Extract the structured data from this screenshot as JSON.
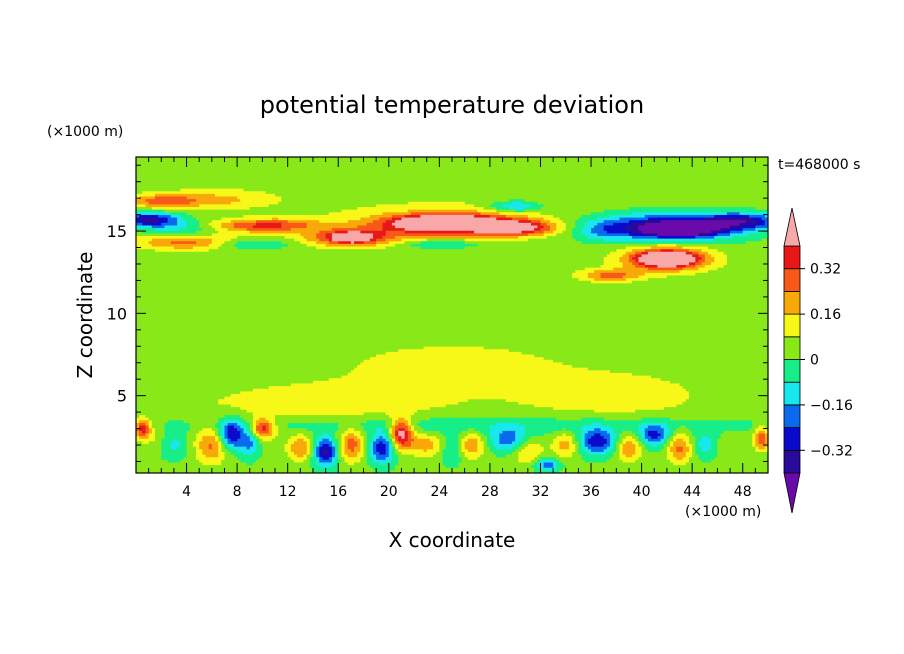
{
  "chart_data": {
    "type": "heatmap",
    "title": "potential temperature deviation",
    "xlabel": "X coordinate",
    "ylabel": "Z coordinate",
    "x_unit": "(×1000 m)",
    "y_unit": "(×1000 m)",
    "time_label": "t=468000 s",
    "xlim": [
      0,
      50
    ],
    "ylim": [
      0.3,
      19.5
    ],
    "x_ticks": [
      4,
      8,
      12,
      16,
      20,
      24,
      28,
      32,
      36,
      40,
      44,
      48
    ],
    "y_ticks": [
      5,
      10,
      15
    ],
    "colorbar": {
      "levels": [
        -0.4,
        -0.32,
        -0.24,
        -0.16,
        -0.08,
        0,
        0.08,
        0.16,
        0.24,
        0.32,
        0.4
      ],
      "tick_labels": [
        "0.32",
        "0.16",
        "0",
        "−0.16",
        "−0.32"
      ],
      "tick_values": [
        0.32,
        0.16,
        0,
        -0.16,
        -0.32
      ],
      "colors": [
        "#6a0aaa",
        "#2a0a9a",
        "#0a0acc",
        "#0a6aee",
        "#18e8ee",
        "#18ee88",
        "#88e818",
        "#f8f818",
        "#f8a808",
        "#f85818",
        "#e81818",
        "#f8a8a8"
      ],
      "extend": "both"
    },
    "background_value": 0.02,
    "features": [
      {
        "x": 25,
        "z": 17.5,
        "sx": 30,
        "sz": 3,
        "value": 0.05
      },
      {
        "x": 2,
        "z": 16.8,
        "sx": 2.5,
        "sz": 0.4,
        "value": 0.22
      },
      {
        "x": 6,
        "z": 16.9,
        "sx": 4,
        "sz": 0.5,
        "value": 0.14
      },
      {
        "x": 1,
        "z": 15.7,
        "sx": 2.5,
        "sz": 0.45,
        "value": -0.38
      },
      {
        "x": 4,
        "z": 15.2,
        "sx": 3,
        "sz": 0.45,
        "value": -0.14
      },
      {
        "x": 4,
        "z": 14.3,
        "sx": 4,
        "sz": 0.45,
        "value": 0.24
      },
      {
        "x": 9,
        "z": 15.3,
        "sx": 4,
        "sz": 0.4,
        "value": 0.24
      },
      {
        "x": 9,
        "z": 14.2,
        "sx": 3,
        "sz": 0.3,
        "value": -0.15
      },
      {
        "x": 12,
        "z": 15.4,
        "sx": 3,
        "sz": 0.4,
        "value": 0.12
      },
      {
        "x": 17,
        "z": 14.6,
        "sx": 3.5,
        "sz": 0.55,
        "value": 0.34
      },
      {
        "x": 17,
        "z": 14.6,
        "sx": 1.2,
        "sz": 0.25,
        "value": 0.44
      },
      {
        "x": 24.5,
        "z": 15.4,
        "sx": 6.5,
        "sz": 0.75,
        "value": 0.34
      },
      {
        "x": 24.5,
        "z": 15.5,
        "sx": 3.5,
        "sz": 0.45,
        "value": 0.46
      },
      {
        "x": 30,
        "z": 15.2,
        "sx": 3,
        "sz": 0.45,
        "value": 0.38
      },
      {
        "x": 24,
        "z": 14.2,
        "sx": 3,
        "sz": 0.25,
        "value": -0.14
      },
      {
        "x": 30,
        "z": 16.5,
        "sx": 2,
        "sz": 0.35,
        "value": -0.22
      },
      {
        "x": 42,
        "z": 15.3,
        "sx": 6,
        "sz": 0.85,
        "value": -0.36
      },
      {
        "x": 43,
        "z": 15.1,
        "sx": 3,
        "sz": 0.45,
        "value": -0.46
      },
      {
        "x": 48,
        "z": 15.6,
        "sx": 3,
        "sz": 0.5,
        "value": -0.32
      },
      {
        "x": 37,
        "z": 15,
        "sx": 2,
        "sz": 0.6,
        "value": -0.12
      },
      {
        "x": 42,
        "z": 13.3,
        "sx": 3.5,
        "sz": 0.75,
        "value": 0.38
      },
      {
        "x": 42,
        "z": 13.3,
        "sx": 2,
        "sz": 0.4,
        "value": 0.47
      },
      {
        "x": 37.5,
        "z": 12.3,
        "sx": 2.5,
        "sz": 0.4,
        "value": 0.24
      },
      {
        "x": 15,
        "z": 4.5,
        "sx": 12,
        "sz": 1.5,
        "value": 0.1
      },
      {
        "x": 38,
        "z": 5,
        "sx": 8,
        "sz": 1.6,
        "value": 0.1
      },
      {
        "x": 25,
        "z": 7,
        "sx": 10,
        "sz": 1.5,
        "value": 0.09
      },
      {
        "x": 25,
        "z": 3.2,
        "sx": 25,
        "sz": 0.6,
        "value": -0.1
      },
      {
        "x": 6,
        "z": 2,
        "sx": 1.3,
        "sz": 1.1,
        "value": 0.24
      },
      {
        "x": 7.5,
        "z": 2.6,
        "sx": 1,
        "sz": 0.9,
        "value": -0.36
      },
      {
        "x": 9,
        "z": 2.2,
        "sx": 0.8,
        "sz": 0.9,
        "value": -0.2
      },
      {
        "x": 10,
        "z": 3,
        "sx": 1,
        "sz": 0.6,
        "value": 0.36
      },
      {
        "x": 3,
        "z": 2,
        "sx": 1.2,
        "sz": 0.8,
        "value": -0.12
      },
      {
        "x": 1.5,
        "z": 2.5,
        "sx": 0.8,
        "sz": 0.8,
        "value": 0.08
      },
      {
        "x": 0.5,
        "z": 3,
        "sx": 0.6,
        "sz": 0.6,
        "value": 0.36
      },
      {
        "x": 13,
        "z": 1.8,
        "sx": 1,
        "sz": 0.8,
        "value": 0.22
      },
      {
        "x": 15,
        "z": 1.6,
        "sx": 1,
        "sz": 0.9,
        "value": -0.36
      },
      {
        "x": 17,
        "z": 2,
        "sx": 1,
        "sz": 1,
        "value": 0.26
      },
      {
        "x": 19.5,
        "z": 1.8,
        "sx": 1,
        "sz": 0.9,
        "value": -0.34
      },
      {
        "x": 21,
        "z": 2.7,
        "sx": 0.9,
        "sz": 0.9,
        "value": 0.44
      },
      {
        "x": 23,
        "z": 2,
        "sx": 1.5,
        "sz": 0.7,
        "value": 0.18
      },
      {
        "x": 25,
        "z": 1.8,
        "sx": 1,
        "sz": 0.9,
        "value": -0.14
      },
      {
        "x": 26.5,
        "z": 2,
        "sx": 1,
        "sz": 0.8,
        "value": 0.22
      },
      {
        "x": 29.5,
        "z": 2.3,
        "sx": 1.5,
        "sz": 0.7,
        "value": -0.24
      },
      {
        "x": 31,
        "z": 1.6,
        "sx": 1.2,
        "sz": 0.8,
        "value": 0.16
      },
      {
        "x": 32.5,
        "z": 0.8,
        "sx": 1,
        "sz": 0.4,
        "value": -0.24
      },
      {
        "x": 34,
        "z": 2,
        "sx": 1,
        "sz": 0.8,
        "value": 0.18
      },
      {
        "x": 36.5,
        "z": 2.2,
        "sx": 1.5,
        "sz": 0.8,
        "value": -0.32
      },
      {
        "x": 39,
        "z": 1.8,
        "sx": 1,
        "sz": 0.8,
        "value": 0.22
      },
      {
        "x": 41,
        "z": 2.6,
        "sx": 1.2,
        "sz": 0.7,
        "value": -0.28
      },
      {
        "x": 43,
        "z": 1.8,
        "sx": 1,
        "sz": 0.9,
        "value": 0.24
      },
      {
        "x": 45,
        "z": 2,
        "sx": 1,
        "sz": 0.8,
        "value": -0.14
      },
      {
        "x": 47,
        "z": 1.8,
        "sx": 1,
        "sz": 0.8,
        "value": 0.06
      },
      {
        "x": 49.5,
        "z": 2.4,
        "sx": 0.6,
        "sz": 0.7,
        "value": 0.3
      }
    ]
  }
}
